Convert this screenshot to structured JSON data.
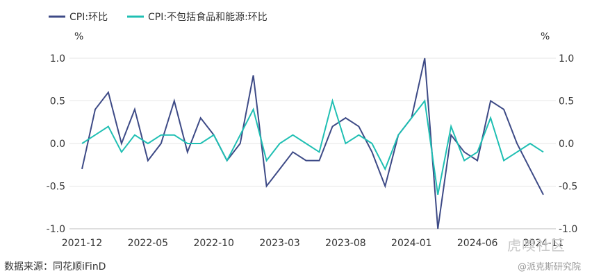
{
  "chart_data": {
    "type": "line",
    "title": "",
    "xlabel": "",
    "ylabel_left": "%",
    "ylabel_right": "%",
    "ylim": [
      -1.0,
      1.0
    ],
    "yticks": [
      "1.0",
      "0.5",
      "0.0",
      "-0.5",
      "-1.0"
    ],
    "xtick_labels": [
      "2021-12",
      "2022-05",
      "2022-10",
      "2023-03",
      "2023-08",
      "2024-01",
      "2024-06",
      "2024-11"
    ],
    "legend_position": "top-left",
    "grid": "horizontal",
    "categories": [
      "2021-12",
      "2022-01",
      "2022-02",
      "2022-03",
      "2022-04",
      "2022-05",
      "2022-06",
      "2022-07",
      "2022-08",
      "2022-09",
      "2022-10",
      "2022-11",
      "2022-12",
      "2023-01",
      "2023-02",
      "2023-03",
      "2023-04",
      "2023-05",
      "2023-06",
      "2023-07",
      "2023-08",
      "2023-09",
      "2023-10",
      "2023-11",
      "2023-12",
      "2024-01",
      "2024-02",
      "2024-03",
      "2024-04",
      "2024-05",
      "2024-06",
      "2024-07",
      "2024-08",
      "2024-09",
      "2024-10",
      "2024-11"
    ],
    "series": [
      {
        "name": "CPI:环比",
        "color": "#3d4a86",
        "values": [
          -0.3,
          0.4,
          0.6,
          0.0,
          0.4,
          -0.2,
          0.0,
          0.5,
          -0.1,
          0.3,
          0.1,
          -0.2,
          0.0,
          0.8,
          -0.5,
          -0.3,
          -0.1,
          -0.2,
          -0.2,
          0.2,
          0.3,
          0.2,
          -0.1,
          -0.5,
          0.1,
          0.3,
          1.0,
          -1.0,
          0.1,
          -0.1,
          -0.2,
          0.5,
          0.4,
          0.0,
          -0.3,
          -0.6
        ]
      },
      {
        "name": "CPI:不包括食品和能源:环比",
        "color": "#1fbfb3",
        "values": [
          0.0,
          0.1,
          0.2,
          -0.1,
          0.1,
          0.0,
          0.1,
          0.1,
          0.0,
          0.0,
          0.1,
          -0.2,
          0.1,
          0.4,
          -0.2,
          0.0,
          0.1,
          0.0,
          -0.1,
          0.5,
          0.0,
          0.1,
          0.0,
          -0.3,
          0.1,
          0.3,
          0.5,
          -0.6,
          0.2,
          -0.2,
          -0.1,
          0.3,
          -0.2,
          -0.1,
          0.0,
          -0.1
        ]
      }
    ]
  },
  "source_text": "数据来源：同花顺iFinD",
  "watermark_top": "虎嗅社区",
  "watermark_bottom": "@派克斯研究院"
}
